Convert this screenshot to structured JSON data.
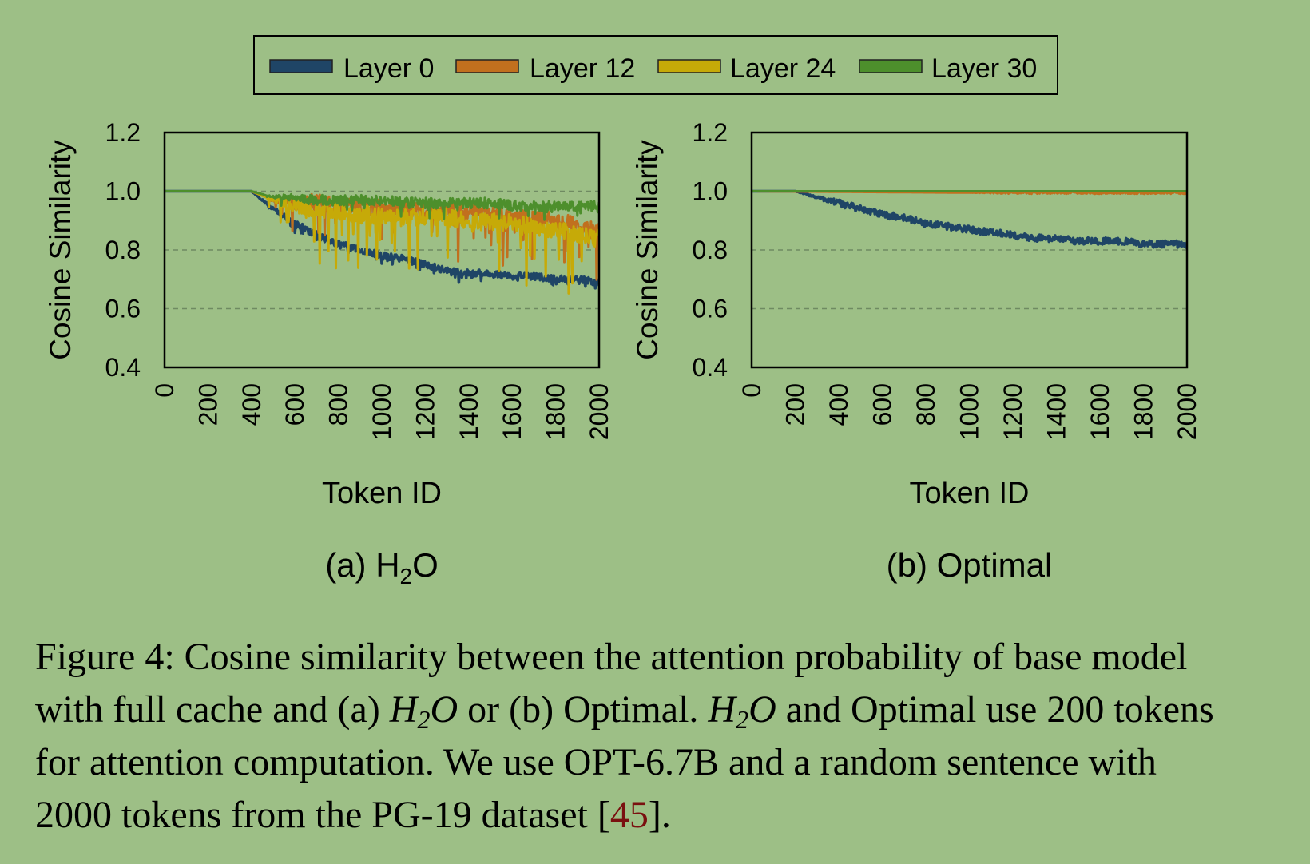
{
  "figure": {
    "legend": [
      "Layer 0",
      "Layer 12",
      "Layer 24",
      "Layer 30"
    ],
    "colors": {
      "Layer 0": "#1f4566",
      "Layer 12": "#c1701e",
      "Layer 24": "#c6aa08",
      "Layer 30": "#4d8f2c",
      "background": "#9dbf86"
    },
    "caption": {
      "prefix": "Figure 4: Cosine similarity between the attention probability of base model with full cache and (a) ",
      "h2o_main": "H",
      "h2o_sub": "2",
      "h2o_end": "O",
      "mid": " or (b) Optimal. ",
      "after": " and Optimal use 200 tokens for attention computation. We use OPT-6.7B and a random sentence with 2000 tokens from the PG-19 dataset [",
      "ref": "45",
      "suffix": "]."
    }
  },
  "chart_data": [
    {
      "type": "line",
      "panel_label": "(a) H",
      "panel_label_sub": "2",
      "panel_label_end": "O",
      "xlabel": "Token ID",
      "ylabel": "Cosine Similarity",
      "xlim": [
        0,
        2000
      ],
      "ylim": [
        0.4,
        1.2
      ],
      "xticks": [
        "0",
        "200",
        "400",
        "600",
        "800",
        "1000",
        "1200",
        "1400",
        "1600",
        "1800",
        "2000"
      ],
      "yticks": [
        "0.4",
        "0.6",
        "0.8",
        "1.0",
        "1.2"
      ],
      "grid": "dashed horizontal at 0.6, 0.8, 1.0",
      "series": [
        {
          "name": "Layer 0",
          "x": [
            0,
            200,
            400,
            450,
            500,
            600,
            700,
            800,
            900,
            1000,
            1100,
            1200,
            1300,
            1400,
            1500,
            1600,
            1700,
            1800,
            1900,
            2000
          ],
          "y": [
            1.0,
            1.0,
            1.0,
            0.97,
            0.94,
            0.89,
            0.85,
            0.82,
            0.8,
            0.78,
            0.77,
            0.75,
            0.73,
            0.72,
            0.72,
            0.71,
            0.71,
            0.7,
            0.7,
            0.69
          ]
        },
        {
          "name": "Layer 12",
          "x": [
            0,
            200,
            400,
            500,
            600,
            700,
            800,
            900,
            1000,
            1100,
            1200,
            1300,
            1400,
            1500,
            1600,
            1700,
            1800,
            1900,
            2000
          ],
          "y": [
            1.0,
            1.0,
            1.0,
            0.97,
            0.96,
            0.96,
            0.95,
            0.95,
            0.94,
            0.94,
            0.93,
            0.93,
            0.93,
            0.92,
            0.92,
            0.91,
            0.9,
            0.88,
            0.86
          ]
        },
        {
          "name": "Layer 24",
          "x": [
            0,
            200,
            400,
            500,
            600,
            700,
            800,
            900,
            1000,
            1100,
            1200,
            1300,
            1400,
            1500,
            1600,
            1700,
            1800,
            1900,
            2000
          ],
          "y": [
            1.0,
            1.0,
            1.0,
            0.97,
            0.95,
            0.94,
            0.93,
            0.92,
            0.92,
            0.91,
            0.91,
            0.91,
            0.9,
            0.9,
            0.89,
            0.88,
            0.87,
            0.85,
            0.84
          ]
        },
        {
          "name": "Layer 30",
          "x": [
            0,
            200,
            400,
            500,
            600,
            700,
            800,
            900,
            1000,
            1100,
            1200,
            1300,
            1400,
            1500,
            1600,
            1700,
            1800,
            1900,
            2000
          ],
          "y": [
            1.0,
            1.0,
            1.0,
            0.98,
            0.98,
            0.97,
            0.97,
            0.97,
            0.97,
            0.96,
            0.96,
            0.96,
            0.96,
            0.96,
            0.95,
            0.95,
            0.95,
            0.95,
            0.95
          ]
        }
      ]
    },
    {
      "type": "line",
      "panel_label": "(b) Optimal",
      "xlabel": "Token ID",
      "ylabel": "Cosine Similarity",
      "xlim": [
        0,
        2000
      ],
      "ylim": [
        0.4,
        1.2
      ],
      "xticks": [
        "0",
        "200",
        "400",
        "600",
        "800",
        "1000",
        "1200",
        "1400",
        "1600",
        "1800",
        "2000"
      ],
      "yticks": [
        "0.4",
        "0.6",
        "0.8",
        "1.0",
        "1.2"
      ],
      "grid": "dashed horizontal at 0.6, 0.8, 1.0",
      "series": [
        {
          "name": "Layer 0",
          "x": [
            0,
            100,
            200,
            300,
            400,
            500,
            600,
            700,
            800,
            900,
            1000,
            1100,
            1200,
            1300,
            1400,
            1500,
            1600,
            1700,
            1800,
            1900,
            2000
          ],
          "y": [
            1.0,
            1.0,
            1.0,
            0.98,
            0.96,
            0.94,
            0.92,
            0.91,
            0.89,
            0.88,
            0.87,
            0.86,
            0.85,
            0.84,
            0.84,
            0.83,
            0.83,
            0.83,
            0.82,
            0.82,
            0.82
          ]
        },
        {
          "name": "Layer 12",
          "x": [
            0,
            1000,
            2000
          ],
          "y": [
            1.0,
            0.995,
            0.995
          ]
        },
        {
          "name": "Layer 24",
          "x": [
            0,
            2000
          ],
          "y": [
            1.0,
            1.0
          ]
        },
        {
          "name": "Layer 30",
          "x": [
            0,
            2000
          ],
          "y": [
            1.0,
            1.0
          ]
        }
      ]
    }
  ]
}
